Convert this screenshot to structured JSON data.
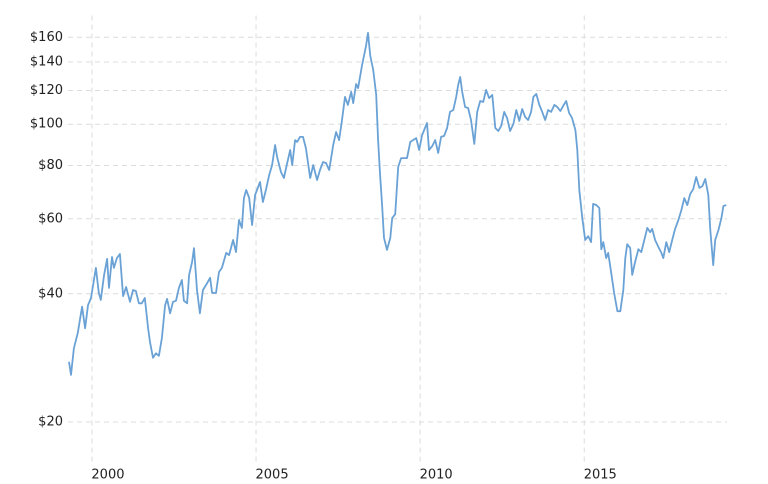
{
  "chart_data": {
    "type": "line",
    "x": [
      1999.3,
      1999.36,
      1999.45,
      1999.57,
      1999.7,
      1999.79,
      1999.88,
      1999.97,
      2000.12,
      2000.21,
      2000.27,
      2000.37,
      2000.46,
      2000.52,
      2000.61,
      2000.67,
      2000.76,
      2000.85,
      2000.95,
      2001.04,
      2001.16,
      2001.25,
      2001.34,
      2001.43,
      2001.52,
      2001.61,
      2001.71,
      2001.77,
      2001.86,
      2001.95,
      2002.04,
      2002.13,
      2002.23,
      2002.29,
      2002.38,
      2002.47,
      2002.56,
      2002.65,
      2002.74,
      2002.8,
      2002.9,
      2002.96,
      2003.05,
      2003.11,
      2003.2,
      2003.29,
      2003.38,
      2003.51,
      2003.6,
      2003.66,
      2003.78,
      2003.87,
      2003.96,
      2004.09,
      2004.18,
      2004.3,
      2004.39,
      2004.48,
      2004.57,
      2004.63,
      2004.7,
      2004.79,
      2004.88,
      2004.97,
      2005.12,
      2005.21,
      2005.3,
      2005.4,
      2005.49,
      2005.58,
      2005.64,
      2005.76,
      2005.85,
      2005.95,
      2006.04,
      2006.1,
      2006.19,
      2006.25,
      2006.34,
      2006.43,
      2006.52,
      2006.65,
      2006.74,
      2006.86,
      2006.95,
      2007.04,
      2007.13,
      2007.23,
      2007.35,
      2007.44,
      2007.53,
      2007.62,
      2007.71,
      2007.8,
      2007.9,
      2007.96,
      2008.05,
      2008.11,
      2008.23,
      2008.35,
      2008.41,
      2008.48,
      2008.57,
      2008.66,
      2008.72,
      2008.78,
      2008.84,
      2008.9,
      2008.99,
      2009.09,
      2009.15,
      2009.24,
      2009.33,
      2009.42,
      2009.6,
      2009.7,
      2009.88,
      2009.97,
      2010.06,
      2010.21,
      2010.27,
      2010.37,
      2010.46,
      2010.55,
      2010.64,
      2010.73,
      2010.82,
      2010.91,
      2011.01,
      2011.1,
      2011.16,
      2011.22,
      2011.28,
      2011.37,
      2011.46,
      2011.55,
      2011.65,
      2011.74,
      2011.83,
      2011.92,
      2012.01,
      2012.1,
      2012.2,
      2012.29,
      2012.38,
      2012.47,
      2012.56,
      2012.65,
      2012.74,
      2012.84,
      2012.93,
      2013.02,
      2013.11,
      2013.2,
      2013.29,
      2013.38,
      2013.45,
      2013.54,
      2013.63,
      2013.72,
      2013.81,
      2013.9,
      2013.99,
      2014.09,
      2014.18,
      2014.27,
      2014.36,
      2014.45,
      2014.54,
      2014.63,
      2014.73,
      2014.79,
      2014.85,
      2014.94,
      2015.03,
      2015.12,
      2015.21,
      2015.27,
      2015.37,
      2015.46,
      2015.52,
      2015.58,
      2015.67,
      2015.73,
      2015.82,
      2015.91,
      2016.01,
      2016.1,
      2016.19,
      2016.25,
      2016.31,
      2016.4,
      2016.46,
      2016.55,
      2016.65,
      2016.74,
      2016.83,
      2016.92,
      2017.01,
      2017.07,
      2017.16,
      2017.26,
      2017.35,
      2017.41,
      2017.5,
      2017.59,
      2017.68,
      2017.77,
      2017.87,
      2017.96,
      2018.05,
      2018.14,
      2018.23,
      2018.32,
      2018.41,
      2018.51,
      2018.6,
      2018.69,
      2018.78,
      2018.84,
      2018.93,
      2018.99,
      2019.09,
      2019.18,
      2019.24,
      2019.33
    ],
    "values": [
      27.7,
      25.8,
      29.8,
      32.4,
      37.3,
      33.2,
      37.6,
      39.1,
      46.0,
      40.2,
      38.7,
      44.3,
      48.3,
      41.3,
      48.8,
      46.0,
      48.5,
      49.6,
      39.5,
      41.5,
      38.3,
      40.8,
      40.6,
      38.0,
      38.0,
      39.1,
      33.2,
      30.8,
      28.3,
      29.0,
      28.6,
      31.5,
      37.6,
      38.9,
      36.0,
      38.3,
      38.5,
      41.3,
      43.1,
      38.5,
      38.0,
      44.3,
      47.5,
      51.2,
      40.8,
      36.0,
      40.8,
      42.4,
      43.6,
      40.2,
      40.2,
      45.0,
      46.0,
      49.9,
      49.3,
      53.5,
      50.1,
      59.6,
      57.1,
      67.1,
      70.1,
      67.1,
      58.0,
      68.2,
      73.2,
      65.7,
      70.1,
      76.0,
      80.2,
      89.4,
      83.8,
      77.2,
      74.8,
      81.1,
      87.0,
      80.2,
      91.8,
      90.9,
      93.4,
      93.4,
      87.9,
      74.8,
      80.2,
      74.0,
      78.1,
      81.5,
      81.1,
      78.1,
      89.4,
      95.9,
      91.8,
      102.3,
      115.9,
      111.0,
      119.1,
      112.1,
      124.3,
      121.6,
      137.8,
      152.6,
      163.8,
      144.6,
      134.2,
      117.2,
      91.8,
      76.0,
      64.6,
      54.1,
      50.7,
      54.1,
      60.2,
      61.5,
      79.4,
      83.3,
      83.3,
      90.9,
      92.8,
      87.0,
      94.3,
      100.7,
      87.0,
      88.9,
      91.8,
      85.6,
      93.4,
      93.9,
      98.0,
      106.9,
      108.0,
      115.9,
      123.7,
      129.1,
      119.1,
      109.8,
      109.2,
      102.3,
      89.9,
      106.9,
      113.4,
      112.8,
      120.4,
      115.2,
      117.2,
      98.0,
      96.4,
      99.1,
      106.9,
      103.4,
      96.4,
      100.2,
      108.0,
      101.8,
      108.6,
      104.0,
      102.3,
      106.9,
      115.9,
      117.8,
      111.0,
      106.9,
      102.3,
      108.0,
      106.9,
      111.0,
      109.8,
      107.4,
      110.4,
      113.4,
      106.3,
      103.4,
      96.9,
      87.0,
      70.1,
      60.2,
      53.5,
      54.6,
      52.9,
      65.0,
      64.6,
      63.6,
      50.9,
      52.9,
      48.5,
      49.9,
      45.0,
      40.2,
      36.4,
      36.4,
      40.8,
      48.5,
      52.3,
      51.2,
      44.3,
      47.5,
      50.9,
      50.1,
      53.5,
      57.1,
      55.8,
      56.8,
      53.5,
      51.5,
      49.9,
      48.5,
      52.9,
      50.1,
      53.5,
      56.8,
      59.6,
      62.9,
      67.1,
      64.6,
      68.6,
      70.4,
      75.2,
      70.9,
      71.6,
      74.4,
      68.2,
      56.5,
      46.7,
      53.5,
      56.5,
      60.2,
      64.3,
      64.6
    ],
    "color": "#6aa2d6",
    "xlim": [
      1999.27,
      2019.35
    ],
    "xticks": [
      2000,
      2005,
      2010,
      2015
    ],
    "ylim": [
      16,
      180
    ],
    "yscale": "log",
    "yticks": [
      {
        "value": 20,
        "label": "$20"
      },
      {
        "value": 40,
        "label": "$40"
      },
      {
        "value": 60,
        "label": "$60"
      },
      {
        "value": 80,
        "label": "$80"
      },
      {
        "value": 100,
        "label": "$100"
      },
      {
        "value": 120,
        "label": "$120"
      },
      {
        "value": 140,
        "label": "$140"
      },
      {
        "value": 160,
        "label": "$160"
      }
    ],
    "grid": true
  }
}
